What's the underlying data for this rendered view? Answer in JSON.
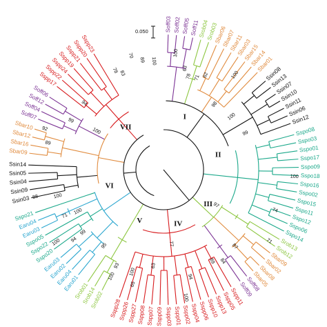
{
  "colors": {
    "red": "#d7191c",
    "purple": "#7b3294",
    "orange": "#e08a3c",
    "black": "#111111",
    "teal": "#1aa88a",
    "blue": "#2aa6cf",
    "lime": "#8cc63f"
  },
  "scale": {
    "label": "0.050"
  },
  "clades": [
    {
      "label": "I",
      "angle": 22
    },
    {
      "label": "II",
      "angle": 75
    },
    {
      "label": "III",
      "angle": 128
    },
    {
      "label": "IV",
      "angle": 165
    },
    {
      "label": "V",
      "angle": 205
    },
    {
      "label": "VI",
      "angle": 253
    },
    {
      "label": "VII",
      "angle": 318
    }
  ],
  "leaves": [
    {
      "label": "Soff03",
      "color": "purple",
      "angle": 2
    },
    {
      "label": "Soff02",
      "color": "purple",
      "angle": 5.5
    },
    {
      "label": "Soff05",
      "color": "purple",
      "angle": 9
    },
    {
      "label": "Soff11",
      "color": "purple",
      "angle": 12.5
    },
    {
      "label": "Srob04",
      "color": "lime",
      "angle": 16
    },
    {
      "label": "Srob03",
      "color": "lime",
      "angle": 19.5
    },
    {
      "label": "Sbar06",
      "color": "orange",
      "angle": 23
    },
    {
      "label": "Sbar07",
      "color": "orange",
      "angle": 26.5
    },
    {
      "label": "Sbar11",
      "color": "orange",
      "angle": 30
    },
    {
      "label": "Sbar03",
      "color": "orange",
      "angle": 33.5
    },
    {
      "label": "Sbar15",
      "color": "orange",
      "angle": 37
    },
    {
      "label": "Sbar14",
      "color": "orange",
      "angle": 40.5
    },
    {
      "label": "Sbar01",
      "color": "orange",
      "angle": 44
    },
    {
      "label": "Ssin08",
      "color": "black",
      "angle": 49
    },
    {
      "label": "Ssin13",
      "color": "black",
      "angle": 52.5
    },
    {
      "label": "Ssin07",
      "color": "black",
      "angle": 56
    },
    {
      "label": "Ssin10",
      "color": "black",
      "angle": 59.5
    },
    {
      "label": "Ssin11",
      "color": "black",
      "angle": 63
    },
    {
      "label": "Ssin06",
      "color": "black",
      "angle": 66.5
    },
    {
      "label": "Ssin12",
      "color": "black",
      "angle": 70
    },
    {
      "label": "Sspo08",
      "color": "teal",
      "angle": 75
    },
    {
      "label": "Sspo03",
      "color": "teal",
      "angle": 78.5
    },
    {
      "label": "Sspo01",
      "color": "teal",
      "angle": 82
    },
    {
      "label": "Sspo17",
      "color": "teal",
      "angle": 85.5
    },
    {
      "label": "Sspo09",
      "color": "teal",
      "angle": 89
    },
    {
      "label": "Sspo18",
      "color": "teal",
      "angle": 92.5
    },
    {
      "label": "Sspo16",
      "color": "teal",
      "angle": 96
    },
    {
      "label": "Sspo02",
      "color": "teal",
      "angle": 99.5
    },
    {
      "label": "Sspo15",
      "color": "teal",
      "angle": 103
    },
    {
      "label": "Sspo11",
      "color": "teal",
      "angle": 106.5
    },
    {
      "label": "Sspo12",
      "color": "teal",
      "angle": 110
    },
    {
      "label": "Sspo06",
      "color": "teal",
      "angle": 113.5
    },
    {
      "label": "Sspo14",
      "color": "teal",
      "angle": 117
    },
    {
      "label": "Srob13",
      "color": "lime",
      "angle": 121
    },
    {
      "label": "Srob12",
      "color": "lime",
      "angle": 124.5
    },
    {
      "label": "Sbar09",
      "color": "orange",
      "angle": 128
    },
    {
      "label": "Sbar02",
      "color": "orange",
      "angle": 131.5
    },
    {
      "label": "Sbar08",
      "color": "orange",
      "angle": 135
    },
    {
      "label": "Sbar05",
      "color": "orange",
      "angle": 138.5
    },
    {
      "label": "Soff08",
      "color": "purple",
      "angle": 142
    },
    {
      "label": "Soff09",
      "color": "purple",
      "angle": 145.5
    },
    {
      "label": "Sspp11",
      "color": "red",
      "angle": 150
    },
    {
      "label": "Sspp05",
      "color": "red",
      "angle": 153.5
    },
    {
      "label": "Sspp13",
      "color": "red",
      "angle": 157
    },
    {
      "label": "Sspp10",
      "color": "red",
      "angle": 160.5
    },
    {
      "label": "Sspp06",
      "color": "red",
      "angle": 164
    },
    {
      "label": "Sspp04",
      "color": "red",
      "angle": 167.5
    },
    {
      "label": "Sspp02",
      "color": "red",
      "angle": 171
    },
    {
      "label": "Sspp01",
      "color": "red",
      "angle": 174.5
    },
    {
      "label": "Sspp03",
      "color": "red",
      "angle": 178
    },
    {
      "label": "Sspp09",
      "color": "red",
      "angle": 181.5
    },
    {
      "label": "Sspp07",
      "color": "red",
      "angle": 185
    },
    {
      "label": "Sspp08",
      "color": "red",
      "angle": 188.5
    },
    {
      "label": "Sspp27",
      "color": "red",
      "angle": 192
    },
    {
      "label": "Sspp26",
      "color": "red",
      "angle": 195.5
    },
    {
      "label": "Sspp28",
      "color": "red",
      "angle": 199
    },
    {
      "label": "Srob02",
      "color": "lime",
      "angle": 207
    },
    {
      "label": "Srob14",
      "color": "lime",
      "angle": 210.5
    },
    {
      "label": "Srob01",
      "color": "lime",
      "angle": 214
    },
    {
      "label": "Earu01",
      "color": "blue",
      "angle": 219
    },
    {
      "label": "Earu04",
      "color": "blue",
      "angle": 222.5
    },
    {
      "label": "Earu02",
      "color": "blue",
      "angle": 226
    },
    {
      "label": "Earu03",
      "color": "blue",
      "angle": 229.5
    },
    {
      "label": "Sspo20",
      "color": "teal",
      "angle": 234
    },
    {
      "label": "Sspo22",
      "color": "teal",
      "angle": 237.5
    },
    {
      "label": "Sspo05",
      "color": "teal",
      "angle": 241
    },
    {
      "label": "Earu03",
      "color": "blue",
      "angle": 244.5
    },
    {
      "label": "Earu04",
      "color": "blue",
      "angle": 248
    },
    {
      "label": "Sspo21",
      "color": "teal",
      "angle": 251.5
    },
    {
      "label": "Ssin03",
      "color": "black",
      "angle": 258
    },
    {
      "label": "Ssin09",
      "color": "black",
      "angle": 261.5
    },
    {
      "label": "Ssin04",
      "color": "black",
      "angle": 265
    },
    {
      "label": "Ssin05",
      "color": "black",
      "angle": 268.5
    },
    {
      "label": "Ssin14",
      "color": "black",
      "angle": 272
    },
    {
      "label": "Sbar09",
      "color": "orange",
      "angle": 277
    },
    {
      "label": "Sbar16",
      "color": "orange",
      "angle": 280.5
    },
    {
      "label": "Sbar12",
      "color": "orange",
      "angle": 284
    },
    {
      "label": "Sbar10",
      "color": "orange",
      "angle": 287.5
    },
    {
      "label": "Soff07",
      "color": "purple",
      "angle": 292
    },
    {
      "label": "Soff04",
      "color": "purple",
      "angle": 295.5
    },
    {
      "label": "Soff12",
      "color": "purple",
      "angle": 299
    },
    {
      "label": "Soff06",
      "color": "purple",
      "angle": 302.5
    },
    {
      "label": "Sspp17",
      "color": "red",
      "angle": 308
    },
    {
      "label": "Sspp22",
      "color": "red",
      "angle": 311.5
    },
    {
      "label": "Sspp24",
      "color": "red",
      "angle": 315
    },
    {
      "label": "Sspp19",
      "color": "red",
      "angle": 318.5
    },
    {
      "label": "Sspp21",
      "color": "red",
      "angle": 322
    },
    {
      "label": "Sspp20",
      "color": "red",
      "angle": 325.5
    },
    {
      "label": "Sspp23",
      "color": "red",
      "angle": 329
    }
  ],
  "bootstrap": [
    {
      "value": "100",
      "angle": 6,
      "r": 170
    },
    {
      "value": "63",
      "angle": 12,
      "r": 150
    },
    {
      "value": "78",
      "angle": 15,
      "r": 140
    },
    {
      "value": "71",
      "angle": 20,
      "r": 142
    },
    {
      "value": "62",
      "angle": 24,
      "r": 150
    },
    {
      "value": "100",
      "angle": 37,
      "r": 172
    },
    {
      "value": "98",
      "angle": 38,
      "r": 120
    },
    {
      "value": "100",
      "angle": 52,
      "r": 125
    },
    {
      "value": "99",
      "angle": 66,
      "r": 130
    },
    {
      "value": "100",
      "angle": 93,
      "r": 190
    },
    {
      "value": "74",
      "angle": 110,
      "r": 172
    },
    {
      "value": "87",
      "angle": 137,
      "r": 152
    },
    {
      "value": "71",
      "angle": 124,
      "r": 185
    },
    {
      "value": "84",
      "angle": 147,
      "r": 158
    },
    {
      "value": "89",
      "angle": 152,
      "r": 150
    },
    {
      "value": "97",
      "angle": 124,
      "r": 92
    },
    {
      "value": "77",
      "angle": 174,
      "r": 108
    },
    {
      "value": "94",
      "angle": 166,
      "r": 160
    },
    {
      "value": "100",
      "angle": 170,
      "r": 188
    },
    {
      "value": "63",
      "angle": 186,
      "r": 140
    },
    {
      "value": "100",
      "angle": 197,
      "r": 155
    },
    {
      "value": "65",
      "angle": 195,
      "r": 172
    },
    {
      "value": "93",
      "angle": 206,
      "r": 155
    },
    {
      "value": "100",
      "angle": 206,
      "r": 172
    },
    {
      "value": "95",
      "angle": 218,
      "r": 140
    },
    {
      "value": "99",
      "angle": 232,
      "r": 148
    },
    {
      "value": "94",
      "angle": 232,
      "r": 165
    },
    {
      "value": "100",
      "angle": 236,
      "r": 188
    },
    {
      "value": "71",
      "angle": 245,
      "r": 158
    },
    {
      "value": "100",
      "angle": 256,
      "r": 158
    },
    {
      "value": "100",
      "angle": 244,
      "r": 138
    },
    {
      "value": "88",
      "angle": 258,
      "r": 190
    },
    {
      "value": "89",
      "angle": 283,
      "r": 172
    },
    {
      "value": "92",
      "angle": 289,
      "r": 182
    },
    {
      "value": "99",
      "angle": 298,
      "r": 152
    },
    {
      "value": "94",
      "angle": 310,
      "r": 150
    },
    {
      "value": "100",
      "angle": 300,
      "r": 112
    },
    {
      "value": "78",
      "angle": 334,
      "r": 160
    },
    {
      "value": "83",
      "angle": 337,
      "r": 152
    },
    {
      "value": "70",
      "angle": 344,
      "r": 172
    },
    {
      "value": "89",
      "angle": 349,
      "r": 162
    },
    {
      "value": "100",
      "angle": 355,
      "r": 158
    }
  ]
}
